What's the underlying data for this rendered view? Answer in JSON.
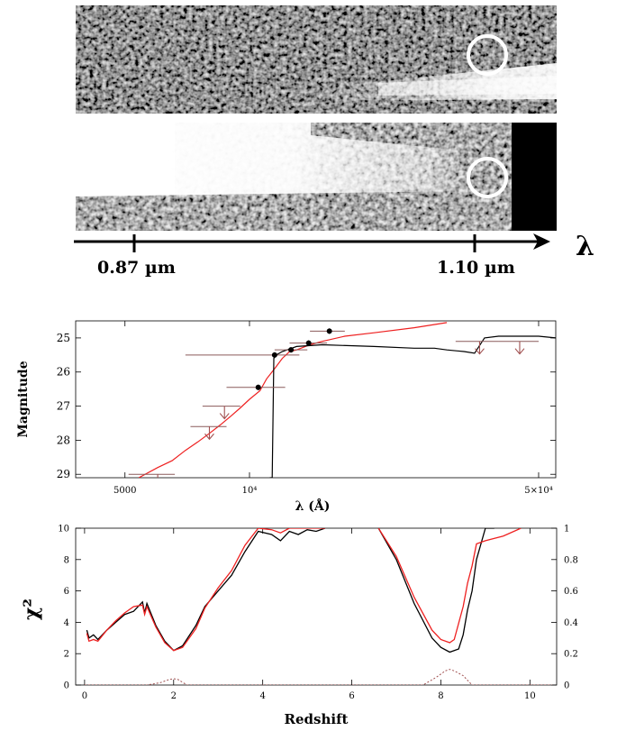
{
  "spectra_panel": {
    "wavelength_symbol": "λ",
    "tick_left": "0.87 µm",
    "tick_right": "1.10 µm"
  },
  "colors": {
    "model_red": "#ee2020",
    "model_black": "#000000",
    "errorbar": "#8a5a5a",
    "limit_arrow": "#a05050"
  },
  "chart_data": [
    {
      "type": "line",
      "xlabel": "λ (Å)",
      "ylabel": "Magnitude",
      "x_scale": "log",
      "xlim": [
        3800,
        55000
      ],
      "ylim": [
        29.1,
        24.5
      ],
      "x_ticks": [
        5000,
        10000,
        50000
      ],
      "x_tick_labels": [
        "5000",
        "10⁴",
        "5×10⁴"
      ],
      "y_ticks": [
        25,
        26,
        27,
        28,
        29
      ],
      "series": [
        {
          "color": "red",
          "x": [
            5400,
            6000,
            6500,
            7000,
            7500,
            8000,
            8500,
            9000,
            9500,
            10000,
            10600,
            11000,
            11500,
            12000,
            12500,
            13000,
            14000,
            15000,
            17000,
            20000,
            25000,
            30000
          ],
          "y": [
            29.1,
            28.8,
            28.6,
            28.3,
            28.05,
            27.8,
            27.55,
            27.3,
            27.05,
            26.8,
            26.55,
            26.2,
            25.9,
            25.6,
            25.4,
            25.35,
            25.2,
            25.1,
            24.95,
            24.85,
            24.7,
            24.55
          ]
        },
        {
          "color": "black",
          "x": [
            11200,
            11350,
            11450,
            11600,
            12000,
            13000,
            15000,
            20000,
            25000,
            28000,
            30000,
            33000,
            35000,
            37000,
            40000,
            45000,
            50000,
            55000
          ],
          "y": [
            29.1,
            29.1,
            25.6,
            25.5,
            25.4,
            25.25,
            25.2,
            25.25,
            25.3,
            25.3,
            25.35,
            25.4,
            25.45,
            25.0,
            24.95,
            24.95,
            24.95,
            25.0
          ]
        }
      ],
      "photometry": [
        {
          "x": 10500,
          "y": 26.45,
          "x_lo": 8800,
          "x_hi": 12200,
          "y_err": 0.08
        },
        {
          "x": 11500,
          "y": 25.5,
          "x_lo": 7000,
          "x_hi": 13200,
          "y_err": 0.08
        },
        {
          "x": 12600,
          "y": 25.35,
          "x_lo": 11500,
          "x_hi": 13800,
          "y_err": 0.08
        },
        {
          "x": 13900,
          "y": 25.15,
          "x_lo": 12500,
          "x_hi": 15400,
          "y_err": 0.08
        },
        {
          "x": 15600,
          "y": 24.8,
          "x_lo": 14000,
          "x_hi": 17000,
          "y_err": 0.08
        }
      ],
      "upper_limits": [
        {
          "x": 6000,
          "y": 29.0,
          "x_lo": 5100,
          "x_hi": 6600
        },
        {
          "x": 8000,
          "y": 27.6,
          "x_lo": 7200,
          "x_hi": 8800
        },
        {
          "x": 8700,
          "y": 27.0,
          "x_lo": 7700,
          "x_hi": 9500
        },
        {
          "x": 36000,
          "y": 25.1,
          "x_lo": 31500,
          "x_hi": 40000
        },
        {
          "x": 45000,
          "y": 25.1,
          "x_lo": 40000,
          "x_hi": 50000
        }
      ]
    },
    {
      "type": "line",
      "xlabel": "Redshift",
      "ylabel": "χ²",
      "xlim": [
        -0.2,
        10.6
      ],
      "ylim": [
        0,
        10
      ],
      "y2lim": [
        0,
        1
      ],
      "x_ticks": [
        0,
        2,
        4,
        6,
        8,
        10
      ],
      "y_ticks": [
        0,
        2,
        4,
        6,
        8,
        10
      ],
      "y2_ticks": [
        0,
        0.2,
        0.4,
        0.6,
        0.8,
        1
      ],
      "series": [
        {
          "color": "black",
          "x": [
            0.05,
            0.1,
            0.2,
            0.3,
            0.5,
            0.7,
            0.9,
            1.1,
            1.3,
            1.35,
            1.4,
            1.6,
            1.8,
            2.0,
            2.2,
            2.5,
            2.7,
            3.0,
            3.3,
            3.6,
            3.9,
            4.2,
            4.4,
            4.6,
            4.8,
            5.0,
            5.2,
            5.4
          ],
          "y": [
            3.5,
            3.0,
            3.2,
            2.9,
            3.5,
            4.0,
            4.5,
            4.7,
            5.3,
            4.6,
            5.2,
            3.8,
            2.8,
            2.2,
            2.5,
            3.8,
            5.0,
            6.0,
            7.0,
            8.5,
            9.8,
            9.6,
            9.2,
            9.8,
            9.6,
            9.9,
            9.8,
            10.0
          ]
        },
        {
          "color": "black",
          "x": [
            6.6,
            7.0,
            7.4,
            7.8,
            8.0,
            8.2,
            8.4,
            8.5,
            8.6,
            8.7,
            8.8,
            9.0,
            9.2
          ],
          "y": [
            10.0,
            8.0,
            5.2,
            3.0,
            2.4,
            2.1,
            2.3,
            3.2,
            4.8,
            6.0,
            8.0,
            10.0,
            10.0
          ]
        },
        {
          "color": "red",
          "x": [
            0.05,
            0.1,
            0.2,
            0.3,
            0.5,
            0.7,
            0.9,
            1.1,
            1.3,
            1.35,
            1.4,
            1.6,
            1.8,
            2.0,
            2.2,
            2.5,
            2.7,
            3.0,
            3.3,
            3.6,
            3.9,
            4.2,
            4.4,
            4.6,
            4.8,
            5.0,
            5.2,
            5.4
          ],
          "y": [
            3.3,
            2.8,
            2.9,
            2.8,
            3.5,
            4.1,
            4.6,
            5.0,
            5.1,
            4.5,
            5.0,
            3.7,
            2.7,
            2.2,
            2.4,
            3.6,
            4.9,
            6.2,
            7.3,
            8.9,
            10.0,
            9.9,
            9.7,
            10.0,
            10.0,
            10.0,
            10.0,
            10.0
          ]
        },
        {
          "color": "red",
          "x": [
            6.6,
            7.0,
            7.4,
            7.8,
            8.0,
            8.2,
            8.3,
            8.5,
            8.6,
            8.7,
            8.8,
            9.0,
            9.4,
            9.8
          ],
          "y": [
            10.0,
            8.2,
            5.6,
            3.5,
            2.9,
            2.7,
            2.9,
            5.0,
            6.5,
            7.6,
            9.0,
            9.2,
            9.5,
            10.0
          ]
        }
      ],
      "probability": {
        "axis": "right",
        "x": [
          0.0,
          1.4,
          1.7,
          1.9,
          2.0,
          2.1,
          2.3,
          7.6,
          7.9,
          8.1,
          8.2,
          8.3,
          8.5,
          8.7,
          10.5
        ],
        "y": [
          0.0,
          0.0,
          0.015,
          0.035,
          0.04,
          0.035,
          0.0,
          0.0,
          0.05,
          0.09,
          0.1,
          0.09,
          0.06,
          0.0,
          0.0
        ]
      }
    }
  ]
}
